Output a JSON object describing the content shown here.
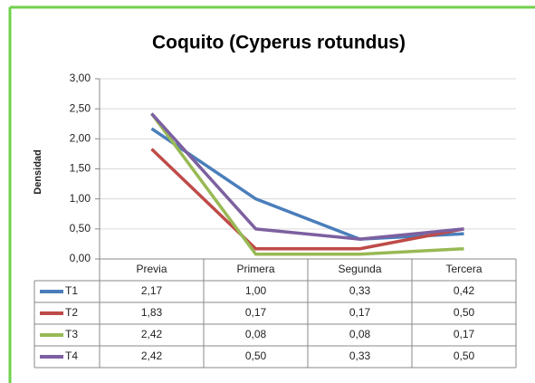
{
  "chart_data": {
    "type": "line",
    "title": "Coquito (Cyperus rotundus)",
    "y_label": "Densidad",
    "categories": [
      "Previa",
      "Primera",
      "Segunda",
      "Tercera"
    ],
    "series": [
      {
        "name": "T1",
        "color": "#4a7ebb",
        "values": [
          2.17,
          1.0,
          0.33,
          0.42
        ],
        "value_labels": [
          "2,17",
          "1,00",
          "0,33",
          "0,42"
        ]
      },
      {
        "name": "T2",
        "color": "#be4b48",
        "values": [
          1.83,
          0.17,
          0.17,
          0.5
        ],
        "value_labels": [
          "1,83",
          "0,17",
          "0,17",
          "0,50"
        ]
      },
      {
        "name": "T3",
        "color": "#98b954",
        "values": [
          2.42,
          0.08,
          0.08,
          0.17
        ],
        "value_labels": [
          "2,42",
          "0,08",
          "0,08",
          "0,17"
        ]
      },
      {
        "name": "T4",
        "color": "#7d60a0",
        "values": [
          2.42,
          0.5,
          0.33,
          0.5
        ],
        "value_labels": [
          "2,42",
          "0,50",
          "0,33",
          "0,50"
        ]
      }
    ],
    "ylim": [
      0,
      3
    ],
    "yticks": [
      {
        "value": 0,
        "label": "0,00"
      },
      {
        "value": 0.5,
        "label": "0,50"
      },
      {
        "value": 1,
        "label": "1,00"
      },
      {
        "value": 1.5,
        "label": "1,50"
      },
      {
        "value": 2,
        "label": "2,00"
      },
      {
        "value": 2.5,
        "label": "2,50"
      },
      {
        "value": 3,
        "label": "3,00"
      }
    ],
    "grid": true,
    "legend": "table"
  }
}
